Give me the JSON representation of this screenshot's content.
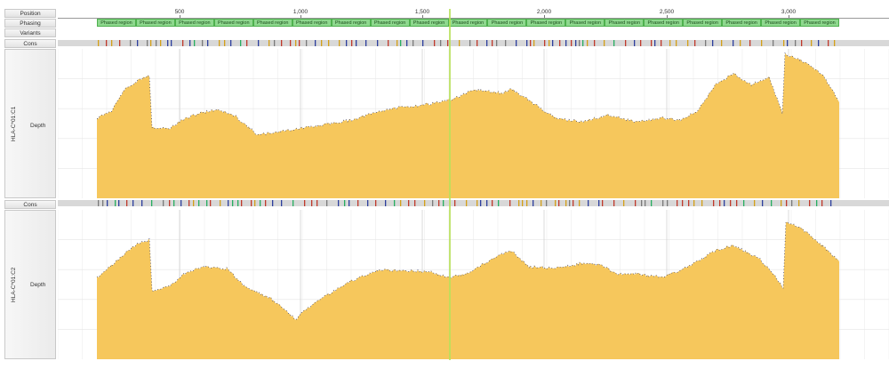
{
  "labels": {
    "position": "Position",
    "phasing": "Phasing",
    "variants": "Variants",
    "cons": "Cons",
    "depth": "Depth"
  },
  "ruler": {
    "ticks": [
      "500",
      "1,000",
      "1,500",
      "2,000",
      "2,500",
      "3,000"
    ]
  },
  "phased_label": "Phased region",
  "phased_count": 19,
  "samples": [
    {
      "name": "HLA-C*01:C1"
    },
    {
      "name": "HLA-C*01:C2"
    }
  ],
  "colors": {
    "depth_fill": "#f6c75c",
    "depth_edge": "#3a3f6b",
    "phased": "#8ed88e",
    "cursor": "#b7e05a",
    "cons_base": "#d8d8d8"
  }
}
